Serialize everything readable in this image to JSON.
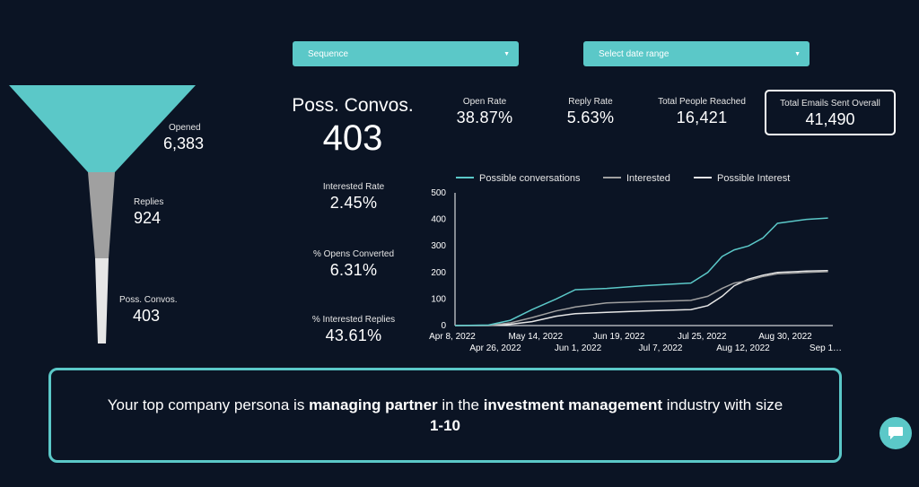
{
  "filters": {
    "sequence": {
      "label": "Sequence"
    },
    "date_range": {
      "label": "Select date range"
    }
  },
  "funnel": {
    "colors": {
      "top": "#5bc8c8",
      "middle": "#a0a0a0",
      "bottom": "#e6e6e6"
    },
    "opened": {
      "label": "Opened",
      "value": "6,383"
    },
    "replies": {
      "label": "Replies",
      "value": "924"
    },
    "convos": {
      "label": "Poss. Convos.",
      "value": "403"
    }
  },
  "headline": {
    "label": "Poss. Convos.",
    "value": "403"
  },
  "stats": {
    "open_rate": {
      "label": "Open Rate",
      "value": "38.87%"
    },
    "reply_rate": {
      "label": "Reply Rate",
      "value": "5.63%"
    },
    "people_reached": {
      "label": "Total People Reached",
      "value": "16,421"
    },
    "emails_sent": {
      "label": "Total Emails Sent Overall",
      "value": "41,490"
    },
    "interested_rate": {
      "label": "Interested Rate",
      "value": "2.45%"
    },
    "opens_converted": {
      "label": "% Opens Converted",
      "value": "6.31%"
    },
    "interested_replies": {
      "label": "% Interested Replies",
      "value": "43.61%"
    }
  },
  "chart_data": {
    "type": "line",
    "xlabel": "",
    "ylabel": "",
    "ylim": [
      0,
      500
    ],
    "yticks": [
      "0",
      "100",
      "200",
      "300",
      "400",
      "500"
    ],
    "x_tick_labels_row1": [
      "Apr 8, 2022",
      "May 14, 2022",
      "Jun 19, 2022",
      "Jul 25, 2022",
      "Aug 30, 2022"
    ],
    "x_tick_labels_row2": [
      "Apr 26, 2022",
      "Jun 1, 2022",
      "Jul 7, 2022",
      "Aug 12, 2022",
      "Sep 1…"
    ],
    "legend_position": "top",
    "x": [
      "2022-04-08",
      "2022-04-22",
      "2022-05-01",
      "2022-05-10",
      "2022-05-20",
      "2022-05-28",
      "2022-06-10",
      "2022-06-25",
      "2022-07-15",
      "2022-07-22",
      "2022-07-28",
      "2022-08-02",
      "2022-08-08",
      "2022-08-14",
      "2022-08-20",
      "2022-09-01",
      "2022-09-10"
    ],
    "series": [
      {
        "name": "Possible conversations",
        "color": "#5bc8c8",
        "values": [
          0,
          2,
          20,
          60,
          100,
          135,
          140,
          150,
          160,
          200,
          260,
          285,
          300,
          330,
          385,
          400,
          405
        ]
      },
      {
        "name": "Interested",
        "color": "#a0a0a0",
        "values": [
          0,
          1,
          10,
          30,
          55,
          70,
          85,
          90,
          95,
          110,
          140,
          160,
          170,
          185,
          195,
          200,
          203
        ]
      },
      {
        "name": "Possible Interest",
        "color": "#e6e6e6",
        "values": [
          0,
          0,
          5,
          15,
          35,
          45,
          50,
          55,
          60,
          75,
          110,
          150,
          175,
          190,
          200,
          205,
          207
        ]
      }
    ]
  },
  "persona": {
    "prefix": "Your top company persona is ",
    "role": "managing partner",
    "middle": " in the ",
    "industry": "investment management",
    "suffix": " industry with size ",
    "size": "1-10"
  }
}
